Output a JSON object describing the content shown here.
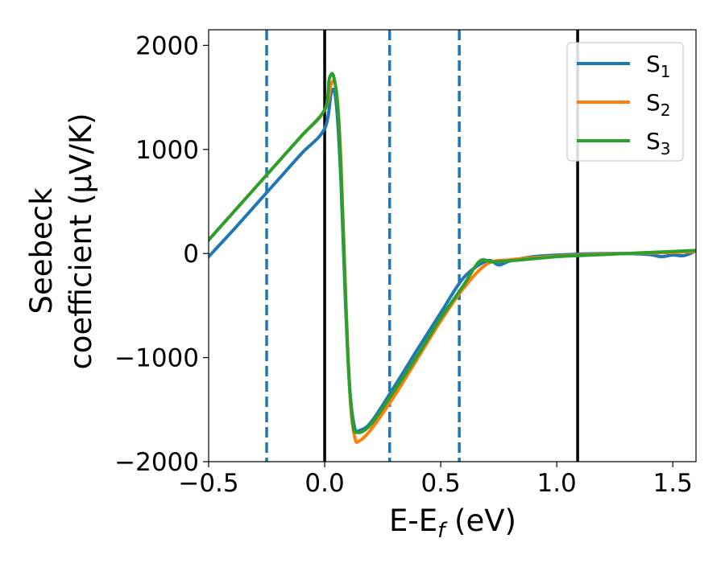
{
  "chart_data": {
    "type": "line",
    "xlabel": "E-E",
    "xlabel_sub": "f",
    "xlabel_unit": " (eV)",
    "ylabel_line1": "Seebeck",
    "ylabel_line2": "coefficient  (μV/K)",
    "xlim": [
      -0.5,
      1.6
    ],
    "ylim": [
      -2000,
      2150
    ],
    "xticks": [
      -0.5,
      0.0,
      0.5,
      1.0,
      1.5
    ],
    "xtick_labels": [
      "−0.5",
      "0.0",
      "0.5",
      "1.0",
      "1.5"
    ],
    "yticks": [
      -2000,
      -1000,
      0,
      1000,
      2000
    ],
    "ytick_labels": [
      "−2000",
      "−1000",
      "0",
      "1000",
      "2000"
    ],
    "vlines_solid": [
      0.0,
      1.09
    ],
    "vlines_dashed": [
      -0.25,
      0.28,
      0.58
    ],
    "legend_position": "upper-right",
    "series": [
      {
        "name": "S",
        "sub": "1",
        "color": "#1f77b4",
        "x": [
          -0.5,
          -0.4,
          -0.3,
          -0.2,
          -0.1,
          0.0,
          0.03,
          0.05,
          0.07,
          0.09,
          0.11,
          0.13,
          0.15,
          0.2,
          0.3,
          0.4,
          0.5,
          0.6,
          0.7,
          0.75,
          0.8,
          0.9,
          1.0,
          1.1,
          1.2,
          1.3,
          1.4,
          1.45,
          1.5,
          1.55,
          1.6
        ],
        "y": [
          -30,
          210,
          460,
          710,
          960,
          1200,
          1560,
          1440,
          700,
          -500,
          -1350,
          -1680,
          -1700,
          -1620,
          -1280,
          -920,
          -570,
          -230,
          -70,
          -110,
          -70,
          -30,
          -15,
          -5,
          0,
          0,
          -10,
          -30,
          -15,
          -20,
          25
        ]
      },
      {
        "name": "S",
        "sub": "2",
        "color": "#ff7f0e",
        "x": [
          -0.5,
          -0.4,
          -0.3,
          -0.2,
          -0.1,
          0.0,
          0.03,
          0.05,
          0.07,
          0.09,
          0.11,
          0.13,
          0.15,
          0.2,
          0.3,
          0.4,
          0.5,
          0.6,
          0.7,
          0.8,
          0.9,
          1.0,
          1.1,
          1.2,
          1.3,
          1.4,
          1.5,
          1.6
        ],
        "y": [
          130,
          380,
          630,
          880,
          1130,
          1380,
          1640,
          1560,
          900,
          -380,
          -1400,
          -1770,
          -1800,
          -1690,
          -1370,
          -1010,
          -650,
          -330,
          -100,
          -60,
          -40,
          -25,
          -15,
          -5,
          0,
          5,
          10,
          20
        ]
      },
      {
        "name": "S",
        "sub": "3",
        "color": "#2ca02c",
        "x": [
          -0.5,
          -0.4,
          -0.3,
          -0.2,
          -0.1,
          0.0,
          0.02,
          0.04,
          0.06,
          0.08,
          0.1,
          0.12,
          0.14,
          0.2,
          0.3,
          0.4,
          0.5,
          0.6,
          0.65,
          0.68,
          0.72,
          0.8,
          0.9,
          1.0,
          1.1,
          1.2,
          1.3,
          1.4,
          1.5,
          1.6
        ],
        "y": [
          130,
          380,
          630,
          880,
          1130,
          1380,
          1680,
          1690,
          1300,
          200,
          -1000,
          -1600,
          -1720,
          -1640,
          -1320,
          -980,
          -620,
          -300,
          -120,
          -60,
          -80,
          -70,
          -50,
          -30,
          -20,
          -10,
          0,
          10,
          20,
          30
        ]
      }
    ]
  }
}
